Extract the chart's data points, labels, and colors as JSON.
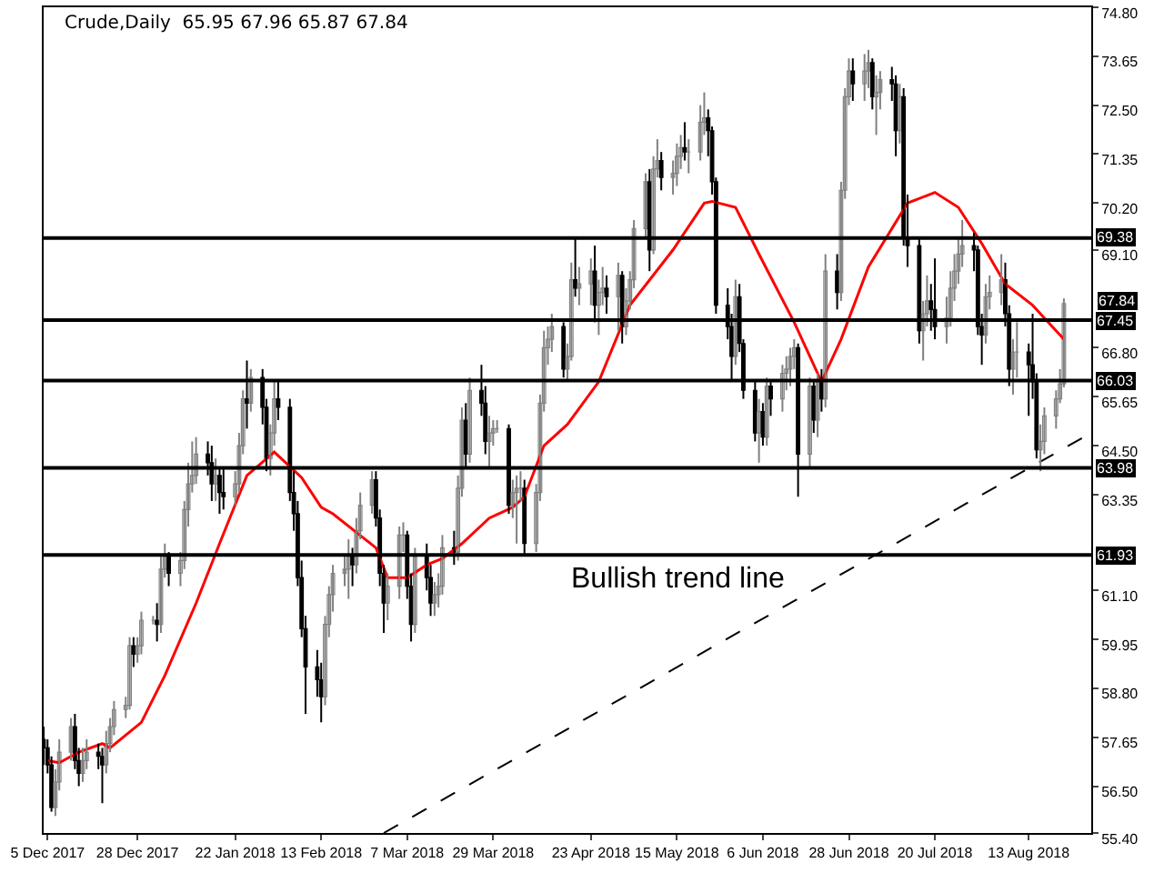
{
  "chart_data": {
    "type": "candlestick",
    "title": "Crude,Daily  65.95 67.96 65.87 67.84",
    "colors": [
      "#000000",
      "#000000",
      "#000000",
      "#808080",
      "#808080",
      "#808080",
      "#000000",
      "#000000",
      "#808080",
      "#808080",
      "#000000",
      "#000000",
      "#808080",
      "#808080",
      "#808080",
      "#808080",
      "#808080",
      "#000000",
      "#808080",
      "#808080",
      "#808080",
      "#000000",
      "#808080",
      "#808080",
      "#000000",
      "#808080",
      "#808080",
      "#808080",
      "#808080",
      "#808080",
      "#000000",
      "#000000",
      "#808080",
      "#000000",
      "#000000",
      "#808080",
      "#808080",
      "#808080",
      "#000000",
      "#808080",
      "#000000",
      "#000000",
      "#808080",
      "#808080",
      "#000000",
      "#000000",
      "#000000",
      "#000000",
      "#000000",
      "#000000",
      "#000000",
      "#000000",
      "#808080",
      "#808080",
      "#808080",
      "#808080",
      "#808080",
      "#000000",
      "#808080",
      "#808080",
      "#808080",
      "#000000",
      "#000000",
      "#000000",
      "#808080",
      "#808080",
      "#808080",
      "#000000",
      "#000000",
      "#808080",
      "#000000",
      "#000000",
      "#808080",
      "#808080",
      "#808080",
      "#000000",
      "#808080",
      "#808080",
      "#000000",
      "#808080",
      "#000000",
      "#000000",
      "#808080",
      "#808080",
      "#808080",
      "#000000",
      "#808080",
      "#808080",
      "#808080",
      "#000000",
      "#808080",
      "#808080",
      "#808080",
      "#808080",
      "#808080",
      "#000000",
      "#808080",
      "#808080",
      "#000000",
      "#808080",
      "#808080",
      "#000000",
      "#808080",
      "#808080",
      "#000000",
      "#808080",
      "#000000",
      "#808080",
      "#808080",
      "#808080",
      "#808080",
      "#000000",
      "#808080",
      "#808080",
      "#000000",
      "#808080",
      "#808080",
      "#808080",
      "#000000",
      "#808080",
      "#808080",
      "#808080",
      "#000000",
      "#000000",
      "#000000",
      "#000000",
      "#000000",
      "#808080",
      "#000000",
      "#000000",
      "#000000",
      "#808080",
      "#000000",
      "#808080",
      "#000000",
      "#808080",
      "#808080",
      "#808080",
      "#808080",
      "#000000",
      "#808080",
      "#000000",
      "#808080",
      "#000000",
      "#808080",
      "#000000",
      "#808080",
      "#808080",
      "#808080",
      "#000000",
      "#808080",
      "#808080",
      "#000000",
      "#808080",
      "#808080",
      "#000000",
      "#000000",
      "#808080",
      "#000000",
      "#000000",
      "#000000",
      "#808080",
      "#808080",
      "#000000",
      "#000000",
      "#808080",
      "#808080",
      "#808080",
      "#808080",
      "#808080",
      "#000000",
      "#000000",
      "#000000",
      "#808080",
      "#808080",
      "#808080",
      "#000000",
      "#000000",
      "#808080",
      "#808080",
      "#000000",
      "#000000",
      "#000000",
      "#808080",
      "#808080",
      "#808080",
      "#808080",
      "#808080"
    ],
    "x": [
      "2017-12-04",
      "2017-12-05",
      "2017-12-06",
      "2017-12-07",
      "2017-12-08",
      "2017-12-11",
      "2017-12-12",
      "2017-12-13",
      "2017-12-14",
      "2017-12-15",
      "2017-12-18",
      "2017-12-19",
      "2017-12-20",
      "2017-12-21",
      "2017-12-22",
      "2017-12-25",
      "2017-12-26",
      "2017-12-27",
      "2017-12-28",
      "2017-12-29",
      "2018-01-01",
      "2018-01-02",
      "2018-01-03",
      "2018-01-04",
      "2018-01-05",
      "2018-01-08",
      "2018-01-09",
      "2018-01-10",
      "2018-01-11",
      "2018-01-12",
      "2018-01-15",
      "2018-01-16",
      "2018-01-17",
      "2018-01-18",
      "2018-01-19",
      "2018-01-22",
      "2018-01-23",
      "2018-01-24",
      "2018-01-25",
      "2018-01-26",
      "2018-01-29",
      "2018-01-30",
      "2018-01-31",
      "2018-02-01",
      "2018-02-02",
      "2018-02-05",
      "2018-02-06",
      "2018-02-07",
      "2018-02-08",
      "2018-02-09",
      "2018-02-12",
      "2018-02-13",
      "2018-02-14",
      "2018-02-15",
      "2018-02-16",
      "2018-02-19",
      "2018-02-20",
      "2018-02-21",
      "2018-02-22",
      "2018-02-23",
      "2018-02-26",
      "2018-02-27",
      "2018-02-28",
      "2018-03-01",
      "2018-03-02",
      "2018-03-05",
      "2018-03-06",
      "2018-03-07",
      "2018-03-08",
      "2018-03-09",
      "2018-03-12",
      "2018-03-13",
      "2018-03-14",
      "2018-03-15",
      "2018-03-16",
      "2018-03-19",
      "2018-03-20",
      "2018-03-21",
      "2018-03-22",
      "2018-03-23",
      "2018-03-26",
      "2018-03-27",
      "2018-03-28",
      "2018-03-29",
      "2018-03-30",
      "2018-04-02",
      "2018-04-03",
      "2018-04-04",
      "2018-04-05",
      "2018-04-06",
      "2018-04-09",
      "2018-04-10",
      "2018-04-11",
      "2018-04-12",
      "2018-04-13",
      "2018-04-16",
      "2018-04-17",
      "2018-04-18",
      "2018-04-19",
      "2018-04-20",
      "2018-04-23",
      "2018-04-24",
      "2018-04-25",
      "2018-04-26",
      "2018-04-27",
      "2018-04-30",
      "2018-05-01",
      "2018-05-02",
      "2018-05-03",
      "2018-05-04",
      "2018-05-07",
      "2018-05-08",
      "2018-05-09",
      "2018-05-10",
      "2018-05-11",
      "2018-05-14",
      "2018-05-15",
      "2018-05-16",
      "2018-05-17",
      "2018-05-18",
      "2018-05-21",
      "2018-05-22",
      "2018-05-23",
      "2018-05-24",
      "2018-05-25",
      "2018-05-28",
      "2018-05-29",
      "2018-05-30",
      "2018-05-31",
      "2018-06-01",
      "2018-06-04",
      "2018-06-05",
      "2018-06-06",
      "2018-06-07",
      "2018-06-08",
      "2018-06-11",
      "2018-06-12",
      "2018-06-13",
      "2018-06-14",
      "2018-06-15",
      "2018-06-18",
      "2018-06-19",
      "2018-06-20",
      "2018-06-21",
      "2018-06-22",
      "2018-06-25",
      "2018-06-26",
      "2018-06-27",
      "2018-06-28",
      "2018-06-29",
      "2018-07-02",
      "2018-07-03",
      "2018-07-04",
      "2018-07-05",
      "2018-07-06",
      "2018-07-09",
      "2018-07-10",
      "2018-07-11",
      "2018-07-12",
      "2018-07-13",
      "2018-07-16",
      "2018-07-17",
      "2018-07-18",
      "2018-07-19",
      "2018-07-20",
      "2018-07-23",
      "2018-07-24",
      "2018-07-25",
      "2018-07-26",
      "2018-07-27",
      "2018-07-30",
      "2018-07-31",
      "2018-08-01",
      "2018-08-02",
      "2018-08-03",
      "2018-08-06",
      "2018-08-07",
      "2018-08-08",
      "2018-08-09",
      "2018-08-10",
      "2018-08-13",
      "2018-08-14",
      "2018-08-15",
      "2018-08-16",
      "2018-08-17",
      "2018-08-20",
      "2018-08-21",
      "2018-08-22"
    ],
    "ohlc": [
      [
        57.6,
        57.9,
        57.0,
        57.4
      ],
      [
        57.4,
        57.6,
        56.8,
        57.0
      ],
      [
        57.0,
        57.2,
        55.9,
        56.0
      ],
      [
        56.0,
        56.9,
        55.8,
        56.6
      ],
      [
        56.6,
        57.6,
        56.4,
        57.3
      ],
      [
        57.3,
        58.1,
        57.1,
        57.9
      ],
      [
        57.9,
        58.2,
        56.9,
        57.1
      ],
      [
        57.1,
        57.4,
        56.5,
        56.8
      ],
      [
        56.8,
        57.4,
        56.6,
        57.1
      ],
      [
        57.1,
        57.6,
        56.9,
        57.3
      ],
      [
        57.3,
        57.5,
        56.9,
        57.2
      ],
      [
        57.2,
        57.4,
        56.1,
        57.0
      ],
      [
        57.0,
        57.8,
        56.8,
        57.5
      ],
      [
        57.5,
        58.1,
        57.3,
        57.9
      ],
      [
        57.9,
        58.5,
        57.7,
        58.3
      ],
      [
        58.3,
        58.6,
        58.1,
        58.4
      ],
      [
        58.4,
        60.0,
        58.3,
        59.8
      ],
      [
        59.8,
        60.0,
        59.3,
        59.6
      ],
      [
        59.6,
        60.0,
        59.4,
        59.8
      ],
      [
        59.8,
        60.6,
        59.6,
        60.4
      ],
      [
        60.4,
        60.5,
        60.3,
        60.4
      ],
      [
        60.4,
        60.8,
        59.9,
        60.3
      ],
      [
        60.3,
        61.9,
        60.1,
        61.6
      ],
      [
        61.6,
        62.2,
        61.4,
        61.9
      ],
      [
        61.9,
        62.0,
        61.2,
        61.5
      ],
      [
        61.5,
        62.0,
        61.2,
        61.8
      ],
      [
        61.8,
        63.2,
        61.6,
        63.0
      ],
      [
        63.0,
        64.1,
        62.6,
        63.6
      ],
      [
        63.6,
        64.6,
        63.4,
        63.8
      ],
      [
        63.8,
        64.7,
        63.6,
        64.3
      ],
      [
        64.3,
        64.6,
        63.8,
        64.1
      ],
      [
        64.1,
        64.5,
        63.2,
        63.6
      ],
      [
        63.6,
        64.2,
        63.2,
        63.8
      ],
      [
        63.8,
        64.0,
        62.9,
        63.4
      ],
      [
        63.4,
        64.0,
        63.0,
        63.3
      ],
      [
        63.3,
        63.9,
        63.1,
        63.6
      ],
      [
        63.6,
        64.8,
        63.4,
        64.5
      ],
      [
        64.5,
        65.8,
        64.3,
        65.6
      ],
      [
        65.6,
        66.5,
        64.9,
        65.5
      ],
      [
        65.5,
        66.3,
        65.3,
        66.1
      ],
      [
        66.1,
        66.3,
        65.0,
        65.4
      ],
      [
        65.4,
        65.6,
        63.9,
        64.2
      ],
      [
        64.2,
        65.0,
        63.8,
        64.8
      ],
      [
        64.8,
        66.0,
        64.5,
        65.6
      ],
      [
        65.6,
        66.0,
        65.1,
        65.4
      ],
      [
        65.4,
        65.6,
        63.2,
        63.4
      ],
      [
        63.4,
        63.9,
        62.5,
        62.9
      ],
      [
        62.9,
        63.2,
        61.2,
        61.4
      ],
      [
        61.4,
        61.8,
        60.0,
        60.2
      ],
      [
        60.2,
        60.5,
        58.2,
        59.3
      ],
      [
        59.3,
        59.7,
        58.6,
        59.0
      ],
      [
        59.0,
        59.4,
        58.0,
        58.6
      ],
      [
        58.6,
        60.5,
        58.4,
        60.3
      ],
      [
        60.3,
        61.2,
        60.0,
        61.0
      ],
      [
        61.0,
        61.7,
        60.6,
        61.5
      ],
      [
        61.5,
        61.9,
        61.2,
        61.6
      ],
      [
        61.6,
        62.3,
        60.9,
        61.9
      ],
      [
        61.9,
        62.1,
        61.2,
        61.7
      ],
      [
        61.7,
        62.8,
        61.5,
        62.5
      ],
      [
        62.5,
        63.4,
        62.3,
        63.1
      ],
      [
        63.1,
        63.9,
        62.9,
        63.7
      ],
      [
        63.7,
        63.9,
        62.6,
        62.8
      ],
      [
        62.8,
        63.0,
        61.2,
        61.5
      ],
      [
        61.5,
        61.7,
        60.1,
        60.8
      ],
      [
        60.8,
        61.5,
        60.4,
        61.2
      ],
      [
        61.2,
        62.6,
        60.9,
        62.4
      ],
      [
        62.4,
        62.7,
        62.0,
        62.4
      ],
      [
        62.4,
        62.5,
        60.9,
        61.2
      ],
      [
        61.2,
        61.5,
        59.9,
        60.3
      ],
      [
        60.3,
        62.1,
        60.1,
        61.9
      ],
      [
        61.9,
        62.2,
        61.1,
        61.4
      ],
      [
        61.4,
        61.7,
        60.5,
        60.8
      ],
      [
        60.8,
        61.3,
        60.5,
        61.0
      ],
      [
        61.0,
        61.5,
        60.7,
        61.2
      ],
      [
        61.2,
        62.4,
        61.0,
        62.1
      ],
      [
        62.1,
        62.5,
        61.7,
        62.0
      ],
      [
        62.0,
        63.8,
        61.8,
        63.5
      ],
      [
        63.5,
        65.4,
        63.3,
        65.1
      ],
      [
        65.1,
        65.5,
        64.0,
        64.3
      ],
      [
        64.3,
        66.1,
        64.1,
        65.8
      ],
      [
        65.8,
        66.4,
        65.2,
        65.5
      ],
      [
        65.5,
        65.9,
        64.3,
        64.6
      ],
      [
        64.6,
        65.2,
        64.0,
        64.8
      ],
      [
        64.8,
        65.1,
        64.5,
        64.9
      ],
      [
        64.9,
        65.1,
        64.8,
        64.9
      ],
      [
        64.9,
        65.0,
        62.9,
        63.1
      ],
      [
        63.1,
        63.7,
        62.8,
        63.4
      ],
      [
        63.4,
        63.8,
        62.2,
        63.5
      ],
      [
        63.5,
        63.9,
        63.2,
        63.5
      ],
      [
        63.5,
        63.7,
        61.9,
        62.2
      ],
      [
        62.2,
        63.6,
        62.0,
        63.4
      ],
      [
        63.4,
        65.7,
        63.2,
        65.5
      ],
      [
        65.5,
        67.2,
        65.3,
        66.8
      ],
      [
        66.8,
        67.3,
        66.4,
        67.0
      ],
      [
        67.0,
        67.6,
        66.7,
        67.3
      ],
      [
        67.3,
        67.4,
        66.1,
        66.3
      ],
      [
        66.3,
        66.9,
        66.0,
        66.6
      ],
      [
        66.6,
        68.8,
        66.5,
        68.4
      ],
      [
        68.4,
        69.4,
        68.0,
        68.2
      ],
      [
        68.2,
        68.7,
        67.8,
        68.3
      ],
      [
        68.3,
        68.9,
        67.8,
        68.6
      ],
      [
        68.6,
        69.2,
        67.4,
        67.8
      ],
      [
        67.8,
        68.4,
        67.1,
        68.1
      ],
      [
        68.1,
        68.7,
        67.8,
        68.2
      ],
      [
        68.2,
        68.5,
        67.6,
        68.0
      ],
      [
        68.0,
        68.8,
        67.2,
        68.5
      ],
      [
        68.5,
        68.6,
        66.9,
        67.3
      ],
      [
        67.3,
        68.2,
        67.1,
        67.9
      ],
      [
        67.9,
        68.6,
        67.7,
        68.4
      ],
      [
        68.4,
        69.8,
        68.2,
        69.6
      ],
      [
        69.6,
        70.9,
        69.4,
        70.7
      ],
      [
        70.7,
        71.0,
        68.6,
        69.1
      ],
      [
        69.1,
        71.3,
        69.0,
        71.0
      ],
      [
        71.0,
        71.7,
        70.8,
        71.2
      ],
      [
        71.2,
        71.4,
        70.5,
        70.8
      ],
      [
        70.8,
        71.2,
        70.4,
        70.9
      ],
      [
        70.9,
        71.6,
        70.6,
        71.3
      ],
      [
        71.3,
        71.8,
        71.0,
        71.5
      ],
      [
        71.5,
        72.1,
        71.2,
        71.4
      ],
      [
        71.4,
        71.7,
        70.9,
        71.4
      ],
      [
        71.4,
        72.5,
        71.2,
        72.1
      ],
      [
        72.1,
        72.8,
        71.8,
        72.2
      ],
      [
        72.2,
        72.4,
        71.3,
        71.9
      ],
      [
        71.9,
        72.0,
        70.4,
        70.7
      ],
      [
        70.7,
        70.8,
        67.6,
        67.8
      ],
      [
        67.8,
        68.2,
        67.0,
        67.3
      ],
      [
        67.3,
        67.6,
        66.0,
        66.6
      ],
      [
        66.6,
        68.4,
        66.4,
        68.0
      ],
      [
        68.0,
        68.3,
        66.7,
        66.9
      ],
      [
        66.9,
        67.0,
        65.6,
        65.8
      ],
      [
        65.8,
        66.0,
        64.6,
        64.8
      ],
      [
        64.8,
        65.6,
        64.1,
        65.3
      ],
      [
        65.3,
        65.5,
        64.5,
        64.7
      ],
      [
        64.7,
        66.1,
        64.5,
        65.9
      ],
      [
        65.9,
        66.0,
        65.2,
        65.6
      ],
      [
        65.6,
        66.4,
        65.3,
        66.2
      ],
      [
        66.2,
        66.6,
        65.8,
        66.3
      ],
      [
        66.3,
        66.8,
        65.9,
        66.6
      ],
      [
        66.6,
        67.0,
        66.3,
        66.8
      ],
      [
        66.8,
        66.9,
        63.3,
        64.3
      ],
      [
        64.3,
        66.1,
        64.0,
        65.9
      ],
      [
        65.9,
        66.0,
        64.8,
        65.1
      ],
      [
        65.1,
        66.2,
        64.7,
        66.0
      ],
      [
        66.0,
        66.3,
        65.3,
        65.6
      ],
      [
        65.6,
        69.0,
        65.4,
        68.6
      ],
      [
        68.6,
        69.0,
        67.7,
        68.1
      ],
      [
        68.1,
        70.7,
        67.9,
        70.5
      ],
      [
        70.5,
        72.9,
        70.3,
        72.7
      ],
      [
        72.7,
        73.6,
        72.5,
        73.3
      ],
      [
        73.3,
        73.6,
        72.6,
        73.0
      ],
      [
        73.0,
        73.7,
        72.6,
        73.3
      ],
      [
        73.3,
        73.8,
        72.9,
        73.5
      ],
      [
        73.5,
        73.6,
        72.4,
        72.7
      ],
      [
        72.7,
        73.2,
        71.8,
        72.8
      ],
      [
        72.8,
        73.3,
        72.4,
        73.1
      ],
      [
        73.1,
        73.4,
        72.6,
        73.0
      ],
      [
        73.0,
        73.2,
        71.3,
        71.9
      ],
      [
        71.9,
        73.0,
        71.6,
        72.7
      ],
      [
        72.7,
        72.9,
        69.2,
        69.4
      ],
      [
        69.4,
        70.4,
        68.7,
        69.2
      ],
      [
        69.2,
        69.4,
        66.9,
        67.2
      ],
      [
        67.2,
        67.9,
        66.5,
        67.6
      ],
      [
        67.6,
        68.5,
        67.3,
        67.9
      ],
      [
        67.9,
        68.3,
        67.2,
        67.7
      ],
      [
        67.7,
        68.9,
        67.0,
        67.3
      ],
      [
        67.3,
        68.0,
        66.9,
        67.5
      ],
      [
        67.5,
        68.6,
        67.3,
        68.2
      ],
      [
        68.2,
        69.0,
        67.9,
        68.6
      ],
      [
        68.6,
        69.4,
        68.3,
        69.0
      ],
      [
        69.0,
        69.8,
        68.7,
        69.2
      ],
      [
        69.2,
        69.5,
        68.6,
        69.1
      ],
      [
        69.1,
        69.2,
        67.1,
        67.3
      ],
      [
        67.3,
        67.6,
        66.4,
        67.1
      ],
      [
        67.1,
        68.3,
        66.9,
        68.0
      ],
      [
        68.0,
        68.5,
        67.7,
        68.1
      ],
      [
        68.1,
        69.0,
        67.8,
        68.4
      ],
      [
        68.4,
        68.8,
        67.3,
        67.6
      ],
      [
        67.6,
        67.8,
        65.9,
        66.3
      ],
      [
        66.3,
        67.0,
        65.7,
        66.7
      ],
      [
        66.7,
        67.4,
        66.1,
        66.7
      ],
      [
        66.7,
        66.9,
        65.2,
        66.4
      ],
      [
        66.4,
        67.6,
        65.6,
        66.0
      ],
      [
        66.0,
        66.2,
        64.2,
        64.4
      ],
      [
        64.4,
        65.0,
        63.9,
        64.6
      ],
      [
        64.6,
        65.4,
        64.3,
        65.2
      ],
      [
        65.2,
        65.8,
        64.9,
        65.6
      ],
      [
        65.6,
        66.3,
        65.5,
        65.95
      ],
      [
        65.95,
        67.96,
        65.87,
        67.84
      ]
    ],
    "series": [
      {
        "type": "line",
        "color": "#ff0000",
        "line_style": "solid",
        "x": [
          "2017-12-05",
          "2017-12-08",
          "2017-12-13",
          "2017-12-19",
          "2017-12-21",
          "2017-12-29",
          "2018-01-04",
          "2018-01-12",
          "2018-01-18",
          "2018-01-25",
          "2018-02-01",
          "2018-02-08",
          "2018-02-13",
          "2018-02-16",
          "2018-02-27",
          "2018-03-02",
          "2018-03-07",
          "2018-03-12",
          "2018-03-16",
          "2018-03-21",
          "2018-03-28",
          "2018-04-03",
          "2018-04-06",
          "2018-04-11",
          "2018-04-17",
          "2018-04-25",
          "2018-05-03",
          "2018-05-14",
          "2018-05-22",
          "2018-05-24",
          "2018-05-30",
          "2018-06-05",
          "2018-06-14",
          "2018-06-21",
          "2018-06-26",
          "2018-07-03",
          "2018-07-09",
          "2018-07-13",
          "2018-07-20",
          "2018-07-26",
          "2018-08-01",
          "2018-08-07",
          "2018-08-14",
          "2018-08-17",
          "2018-08-22"
        ],
        "values": [
          57.1,
          57.05,
          57.3,
          57.5,
          57.4,
          58.0,
          59.1,
          60.8,
          62.2,
          63.8,
          64.35,
          63.75,
          63.05,
          62.9,
          62.1,
          61.4,
          61.4,
          61.7,
          61.85,
          62.2,
          62.8,
          63.05,
          63.3,
          64.5,
          65.0,
          66.0,
          67.8,
          69.1,
          70.2,
          70.24,
          70.1,
          69.0,
          67.4,
          66.0,
          67.0,
          68.7,
          69.6,
          70.2,
          70.45,
          70.1,
          69.25,
          68.3,
          67.8,
          67.5,
          67.0
        ]
      },
      {
        "type": "line",
        "color": "#000000",
        "line_style": "dashed",
        "x": [
          "2018-03-01",
          "2018-08-29"
        ],
        "values": [
          55.4,
          64.8
        ]
      }
    ],
    "xlim": [
      "2017-12-04",
      "2018-08-29"
    ],
    "xticks": [
      {
        "value": "2017-12-05",
        "label": "5 Dec 2017"
      },
      {
        "value": "2017-12-28",
        "label": "28 Dec 2017"
      },
      {
        "value": "2018-01-22",
        "label": "22 Jan 2018"
      },
      {
        "value": "2018-02-13",
        "label": "13 Feb 2018"
      },
      {
        "value": "2018-03-07",
        "label": "7 Mar 2018"
      },
      {
        "value": "2018-03-29",
        "label": "29 Mar 2018"
      },
      {
        "value": "2018-04-23",
        "label": "23 Apr 2018"
      },
      {
        "value": "2018-05-15",
        "label": "15 May 2018"
      },
      {
        "value": "2018-06-06",
        "label": "6 Jun 2018"
      },
      {
        "value": "2018-06-28",
        "label": "28 Jun 2018"
      },
      {
        "value": "2018-07-20",
        "label": "20 Jul 2018"
      },
      {
        "value": "2018-08-13",
        "label": "13 Aug 2018"
      }
    ],
    "ylim": [
      55.4,
      74.8
    ],
    "yticks": [
      {
        "value": 74.8,
        "label": "74.80"
      },
      {
        "value": 73.65,
        "label": "73.65"
      },
      {
        "value": 72.5,
        "label": "72.50"
      },
      {
        "value": 71.35,
        "label": "71.35"
      },
      {
        "value": 70.2,
        "label": "70.20"
      },
      {
        "value": 69.1,
        "label": "69.10"
      },
      {
        "value": 66.8,
        "label": "66.80"
      },
      {
        "value": 65.65,
        "label": "65.65"
      },
      {
        "value": 64.5,
        "label": "64.50"
      },
      {
        "value": 63.35,
        "label": "63.35"
      },
      {
        "value": 61.1,
        "label": "61.10"
      },
      {
        "value": 59.95,
        "label": "59.95"
      },
      {
        "value": 58.8,
        "label": "58.80"
      },
      {
        "value": 57.65,
        "label": "57.65"
      },
      {
        "value": 56.5,
        "label": "56.50"
      },
      {
        "value": 55.4,
        "label": "55.40"
      }
    ],
    "ref_lines": [
      {
        "axis": "y",
        "value": 69.38,
        "label": "69.38",
        "color": "#000000"
      },
      {
        "axis": "y",
        "value": 67.45,
        "label": "67.45",
        "color": "#000000"
      },
      {
        "axis": "y",
        "value": 66.03,
        "label": "66.03",
        "color": "#000000"
      },
      {
        "axis": "y",
        "value": 63.98,
        "label": "63.98",
        "color": "#000000"
      },
      {
        "axis": "y",
        "value": 61.93,
        "label": "61.93",
        "color": "#000000"
      }
    ],
    "annotations": [
      "Bullish trend line",
      {
        "text": "67.84",
        "x": "2018-08-22",
        "y": 67.84
      }
    ]
  }
}
